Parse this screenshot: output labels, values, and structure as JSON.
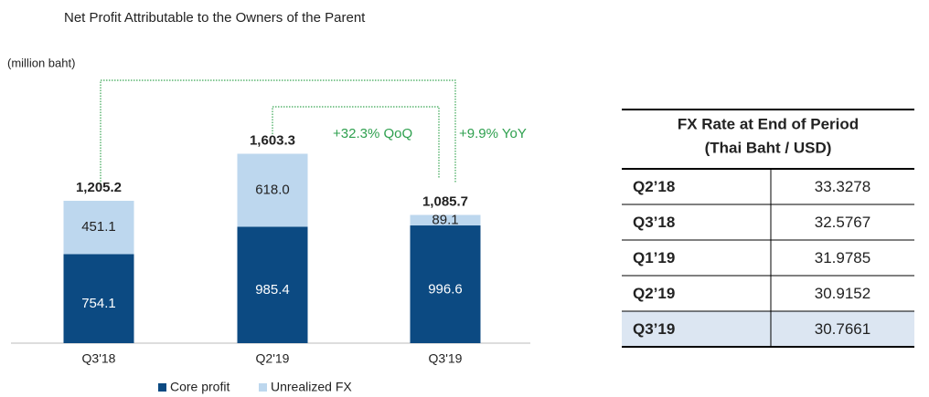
{
  "chart_data": {
    "type": "stacked_bar",
    "title": "Net Profit Attributable to the Owners of the Parent",
    "unit_label": "(million baht)",
    "categories": [
      "Q3'18",
      "Q2'19",
      "Q3'19"
    ],
    "series": [
      {
        "name": "Core profit",
        "color": "#0c4a82",
        "values": [
          754.1,
          985.4,
          996.6
        ]
      },
      {
        "name": "Unrealized FX",
        "color": "#bdd7ee",
        "values": [
          451.1,
          618.0,
          89.1
        ],
        "value_labels": [
          "451.1",
          "618.0",
          "89.1"
        ]
      }
    ],
    "totals": [
      1205.2,
      1603.3,
      1085.7
    ],
    "total_labels": [
      "1,205.2",
      "1,603.3",
      "1,085.7"
    ],
    "annotations": [
      "+32.3% QoQ",
      "+9.9% YoY"
    ],
    "legend": "bottom"
  },
  "table": {
    "title": [
      "FX Rate at End of Period",
      "(Thai Baht / USD)"
    ],
    "rows": [
      [
        "Q2’18",
        "33.3278"
      ],
      [
        "Q3’18",
        "32.5767"
      ],
      [
        "Q1’19",
        "31.9785"
      ],
      [
        "Q2’19",
        "30.9152"
      ],
      [
        "Q3’19",
        "30.7661"
      ]
    ]
  }
}
